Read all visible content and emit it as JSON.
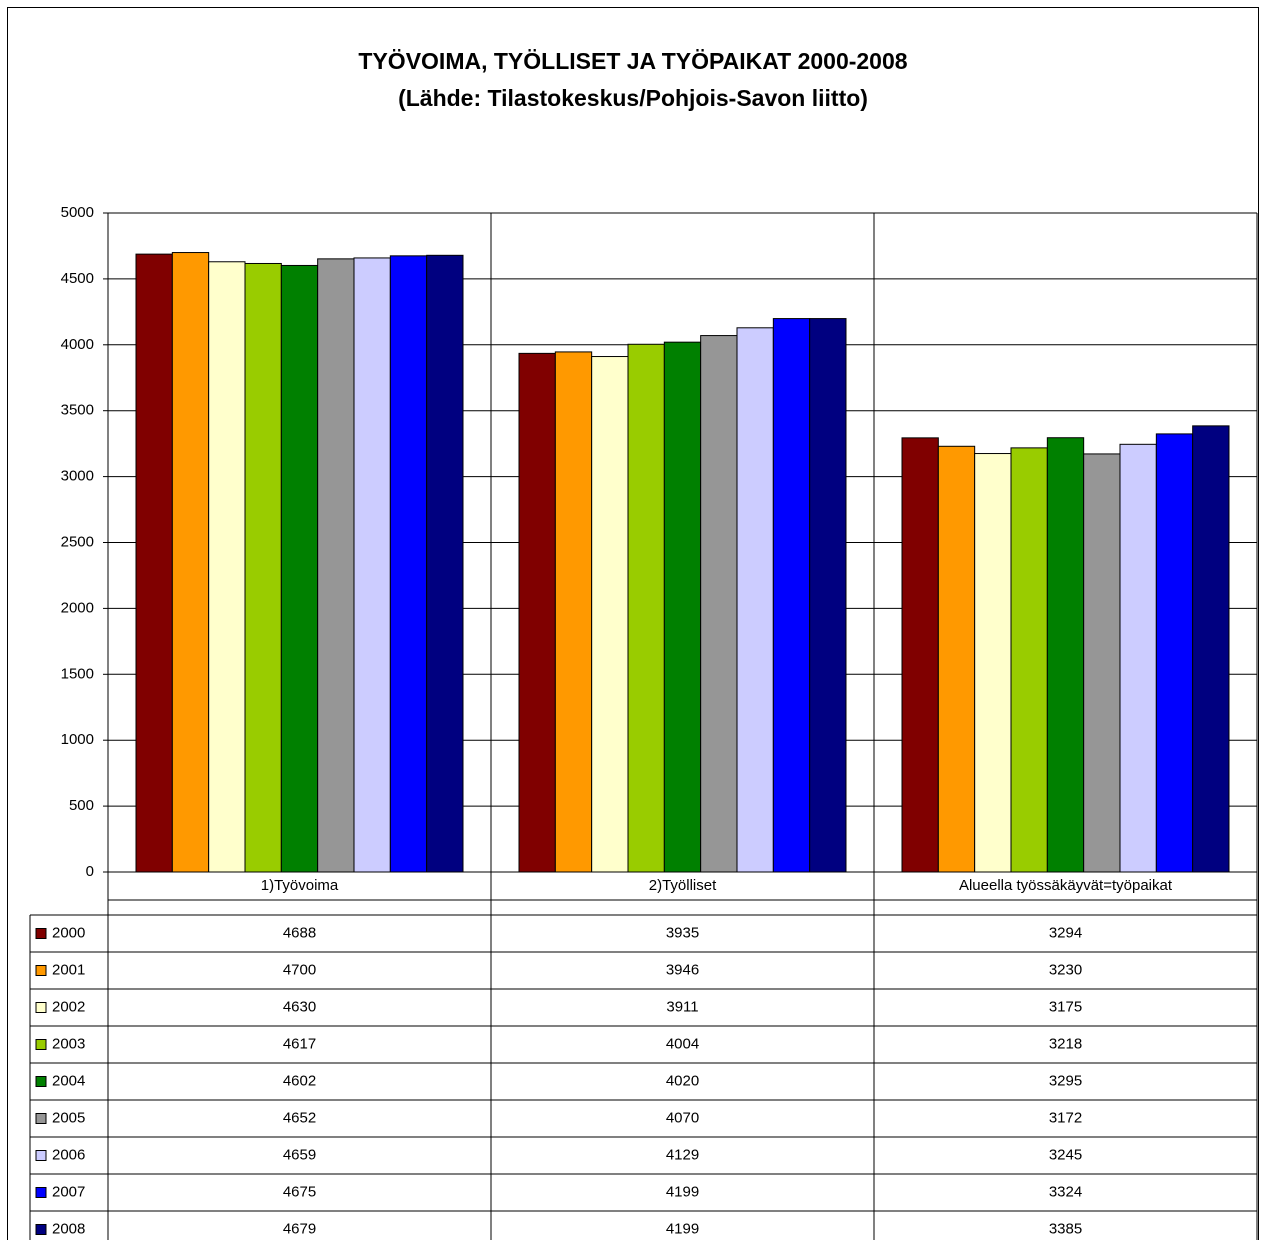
{
  "chart_data": {
    "type": "bar",
    "title": "TYÖVOIMA, TYÖLLISET JA TYÖPAIKAT 2000-2008",
    "subtitle": "(Lähde: Tilastokeskus/Pohjois-Savon liitto)",
    "categories": [
      "1)Työvoima",
      "2)Työlliset",
      "Alueella työssäkäyvät=työpaikat"
    ],
    "series": [
      {
        "name": "2000",
        "color": "#800000",
        "values": [
          4688,
          3935,
          3294
        ]
      },
      {
        "name": "2001",
        "color": "#FF9900",
        "values": [
          4700,
          3946,
          3230
        ]
      },
      {
        "name": "2002",
        "color": "#FFFFCC",
        "values": [
          4630,
          3911,
          3175
        ]
      },
      {
        "name": "2003",
        "color": "#99CC00",
        "values": [
          4617,
          4004,
          3218
        ]
      },
      {
        "name": "2004",
        "color": "#008000",
        "values": [
          4602,
          4020,
          3295
        ]
      },
      {
        "name": "2005",
        "color": "#969696",
        "values": [
          4652,
          4070,
          3172
        ]
      },
      {
        "name": "2006",
        "color": "#CCCCFF",
        "values": [
          4659,
          4129,
          3245
        ]
      },
      {
        "name": "2007",
        "color": "#0000FF",
        "values": [
          4675,
          4199,
          3324
        ]
      },
      {
        "name": "2008",
        "color": "#000080",
        "values": [
          4679,
          4199,
          3385
        ]
      }
    ],
    "ylim": [
      0,
      5000
    ],
    "yticks": [
      0,
      500,
      1000,
      1500,
      2000,
      2500,
      3000,
      3500,
      4000,
      4500,
      5000
    ],
    "grid": true
  }
}
